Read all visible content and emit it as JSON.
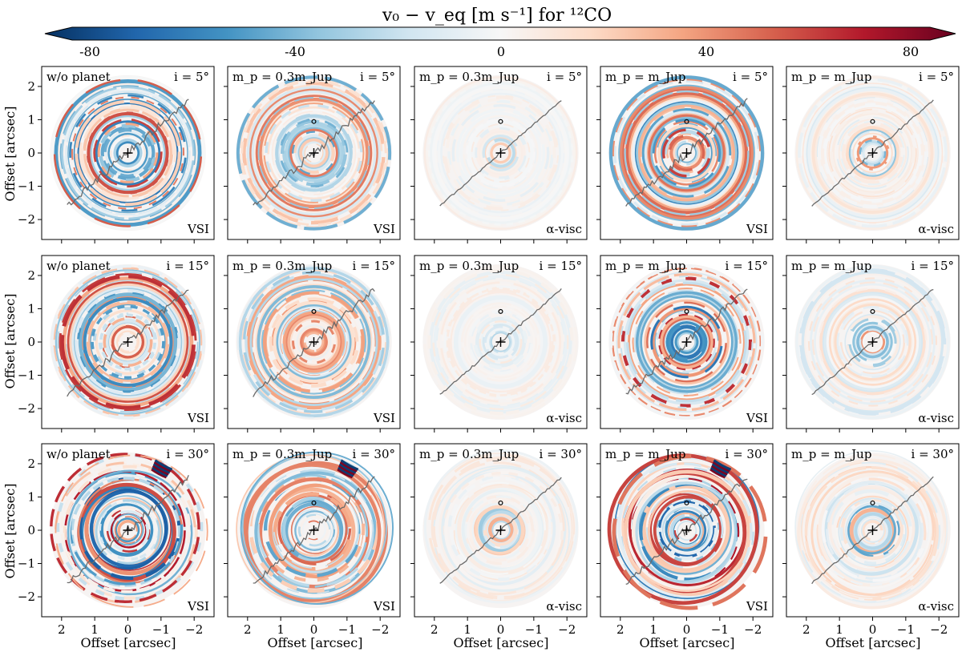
{
  "colorbar": {
    "title": "v₀ − v_eq [m s⁻¹] for ¹²CO",
    "ticks": [
      "-80",
      "-40",
      "0",
      "40",
      "80"
    ],
    "tick_values": [
      -80,
      -40,
      0,
      40,
      80
    ],
    "range": [
      -90,
      90
    ],
    "colormap": "RdBu_r",
    "colors": [
      "#053061",
      "#2166ac",
      "#4393c3",
      "#92c5de",
      "#d1e5f0",
      "#f7f7f7",
      "#fddbc7",
      "#f4a582",
      "#d6604d",
      "#b2182b",
      "#67001f"
    ]
  },
  "axes": {
    "ylabel": "Offset [arcsec]",
    "xlabel": "Offset [arcsec]",
    "yticks": [
      "2",
      "1",
      "0",
      "−1",
      "−2"
    ],
    "xticks": [
      "2",
      "1",
      "0",
      "−1",
      "−2"
    ],
    "xtick_values": [
      2,
      1,
      0,
      -1,
      -2
    ],
    "ytick_values": [
      2,
      1,
      0,
      -1,
      -2
    ]
  },
  "rows": [
    {
      "inclination": "i = 5°",
      "inc_deg": 5
    },
    {
      "inclination": "i = 15°",
      "inc_deg": 15
    },
    {
      "inclination": "i = 30°",
      "inc_deg": 30
    }
  ],
  "columns": [
    {
      "model": "w/o planet",
      "viscosity": "VSI",
      "planet": false,
      "planet_sep_arcsec": 0
    },
    {
      "model": "m_p = 0.3m_Jup",
      "viscosity": "VSI",
      "planet": true,
      "planet_sep_arcsec": 0.95
    },
    {
      "model": "m_p = 0.3m_Jup",
      "viscosity": "α-visc",
      "planet": true,
      "planet_sep_arcsec": 0.95
    },
    {
      "model": "m_p = m_Jup",
      "viscosity": "VSI",
      "planet": true,
      "planet_sep_arcsec": 0.95
    },
    {
      "model": "m_p = m_Jup",
      "viscosity": "α-visc",
      "planet": true,
      "planet_sep_arcsec": 0.95
    }
  ],
  "chart_data": {
    "type": "heatmap",
    "title": "v₀ − v_eq [m s⁻¹] for ¹²CO",
    "xlabel": "Offset [arcsec]",
    "ylabel": "Offset [arcsec]",
    "xlim": [
      2.6,
      -2.6
    ],
    "ylim": [
      -2.6,
      2.6
    ],
    "disk_outer_radius_arcsec": 2.35,
    "value_range": [
      -80,
      80
    ],
    "grid": false,
    "panels": [
      {
        "row": 0,
        "col": 0,
        "label": "w/o planet",
        "inclination": "i = 5°",
        "viscosity": "VSI",
        "amplitude": 0.75
      },
      {
        "row": 0,
        "col": 1,
        "label": "m_p = 0.3m_Jup",
        "inclination": "i = 5°",
        "viscosity": "VSI",
        "amplitude": 0.55
      },
      {
        "row": 0,
        "col": 2,
        "label": "m_p = 0.3m_Jup",
        "inclination": "i = 5°",
        "viscosity": "α-visc",
        "amplitude": 0.18
      },
      {
        "row": 0,
        "col": 3,
        "label": "m_p = m_Jup",
        "inclination": "i = 5°",
        "viscosity": "VSI",
        "amplitude": 0.7
      },
      {
        "row": 0,
        "col": 4,
        "label": "m_p = m_Jup",
        "inclination": "i = 5°",
        "viscosity": "α-visc",
        "amplitude": 0.35
      },
      {
        "row": 1,
        "col": 0,
        "label": "w/o planet",
        "inclination": "i = 15°",
        "viscosity": "VSI",
        "amplitude": 0.75
      },
      {
        "row": 1,
        "col": 1,
        "label": "m_p = 0.3m_Jup",
        "inclination": "i = 15°",
        "viscosity": "VSI",
        "amplitude": 0.5
      },
      {
        "row": 1,
        "col": 2,
        "label": "m_p = 0.3m_Jup",
        "inclination": "i = 15°",
        "viscosity": "α-visc",
        "amplitude": 0.2
      },
      {
        "row": 1,
        "col": 3,
        "label": "m_p = m_Jup",
        "inclination": "i = 15°",
        "viscosity": "VSI",
        "amplitude": 0.75
      },
      {
        "row": 1,
        "col": 4,
        "label": "m_p = m_Jup",
        "inclination": "i = 15°",
        "viscosity": "α-visc",
        "amplitude": 0.4
      },
      {
        "row": 2,
        "col": 0,
        "label": "w/o planet",
        "inclination": "i = 30°",
        "viscosity": "VSI",
        "amplitude": 0.85
      },
      {
        "row": 2,
        "col": 1,
        "label": "m_p = 0.3m_Jup",
        "inclination": "i = 30°",
        "viscosity": "VSI",
        "amplitude": 0.6
      },
      {
        "row": 2,
        "col": 2,
        "label": "m_p = 0.3m_Jup",
        "inclination": "i = 30°",
        "viscosity": "α-visc",
        "amplitude": 0.25
      },
      {
        "row": 2,
        "col": 3,
        "label": "m_p = m_Jup",
        "inclination": "i = 30°",
        "viscosity": "VSI",
        "amplitude": 0.85
      },
      {
        "row": 2,
        "col": 4,
        "label": "m_p = m_Jup",
        "inclination": "i = 30°",
        "viscosity": "α-visc",
        "amplitude": 0.45
      }
    ]
  }
}
